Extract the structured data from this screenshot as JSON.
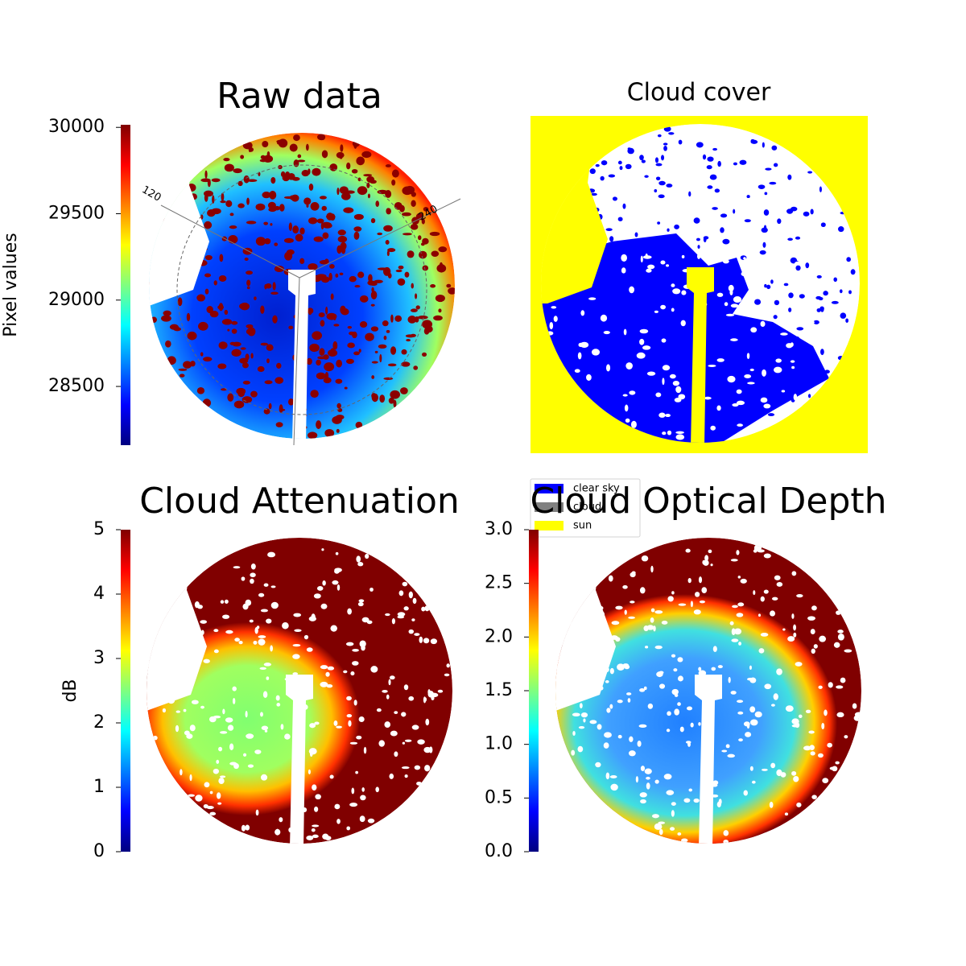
{
  "chart_data": [
    {
      "type": "image",
      "title": "Raw data",
      "ylabel": "Pixel values",
      "colormap": "jet",
      "ylim": [
        28160,
        30015
      ],
      "yticks": [
        28500,
        29000,
        29500,
        30000
      ],
      "annotations": [
        "120",
        "240"
      ]
    },
    {
      "type": "image",
      "title": "Cloud cover",
      "series": [
        {
          "name": "clear sky",
          "color": "#0000ff"
        },
        {
          "name": "cloud",
          "color": "#808080"
        },
        {
          "name": "sun",
          "color": "#ffff00"
        }
      ]
    },
    {
      "type": "image",
      "title": "Cloud Attenuation",
      "ylabel": "dB",
      "colormap": "jet",
      "ylim": [
        0,
        5
      ],
      "yticks": [
        0,
        1,
        2,
        3,
        4,
        5
      ]
    },
    {
      "type": "image",
      "title": "Cloud Optical Depth",
      "colormap": "jet",
      "ylim": [
        0,
        3
      ],
      "yticks": [
        {
          "value": 0,
          "label": "0.0"
        },
        {
          "value": 0.5,
          "label": "0.5"
        },
        {
          "value": 1,
          "label": "1.0"
        },
        {
          "value": 1.5,
          "label": "1.5"
        },
        {
          "value": 2,
          "label": "2.0"
        },
        {
          "value": 2.5,
          "label": "2.5"
        },
        {
          "value": 3,
          "label": "3.0"
        }
      ]
    }
  ]
}
